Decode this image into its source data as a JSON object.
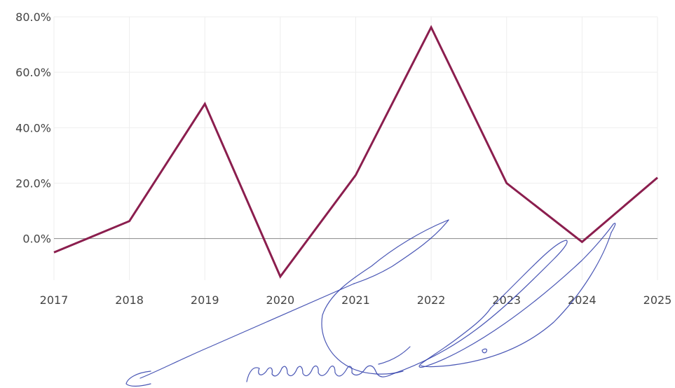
{
  "chart_data": {
    "type": "line",
    "x": [
      2017,
      2018,
      2019,
      2020,
      2021,
      2022,
      2023,
      2024,
      2025
    ],
    "x_tick_labels": [
      "2017",
      "2018",
      "2019",
      "2020",
      "2021",
      "2022",
      "2023",
      "2024",
      "2025"
    ],
    "series": [
      {
        "values": [
          -5.0,
          6.3,
          48.6,
          -13.7,
          22.9,
          76.2,
          20.0,
          -1.2,
          22.0
        ],
        "color": "#8b1e4e"
      }
    ],
    "y_ticks": [
      0,
      20,
      40,
      60,
      80
    ],
    "y_tick_labels": [
      "0.0%",
      "20.0%",
      "40.0%",
      "60.0%",
      "80.0%"
    ],
    "ylim": [
      -15,
      80
    ],
    "xlim": [
      2017,
      2025
    ],
    "grid": true,
    "legend": "none",
    "title": "",
    "xlabel": "",
    "ylabel": ""
  },
  "overlay": {
    "signature": "handwritten-signature"
  }
}
